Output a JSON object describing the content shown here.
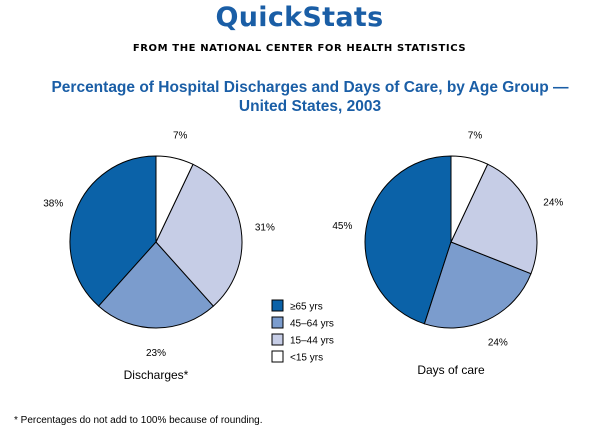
{
  "header": {
    "brand": "QuickStats",
    "subhead": "FROM THE NATIONAL CENTER FOR HEALTH STATISTICS",
    "title_line1": "Percentage of Hospital Discharges and Days of Care, by Age Group —",
    "title_line2": "United States, 2003"
  },
  "legend": {
    "items": [
      {
        "label": "≥65 yrs",
        "color": "#0b62a8"
      },
      {
        "label": "45–64 yrs",
        "color": "#7b9ccd"
      },
      {
        "label": "15–44 yrs",
        "color": "#c6cde6"
      },
      {
        "label": "<15 yrs",
        "color": "#ffffff"
      }
    ]
  },
  "footnote": "* Percentages do not add to 100% because of rounding.",
  "chart_data": [
    {
      "type": "pie",
      "title": "Discharges*",
      "categories": [
        "≥65 yrs",
        "45–64 yrs",
        "15–44 yrs",
        "<15 yrs"
      ],
      "values": [
        38,
        23,
        31,
        7
      ],
      "labels": [
        "38%",
        "23%",
        "31%",
        "7%"
      ],
      "colors": [
        "#0b62a8",
        "#7b9ccd",
        "#c6cde6",
        "#ffffff"
      ]
    },
    {
      "type": "pie",
      "title": "Days of care",
      "categories": [
        "≥65 yrs",
        "45–64 yrs",
        "15–44 yrs",
        "<15 yrs"
      ],
      "values": [
        45,
        24,
        24,
        7
      ],
      "labels": [
        "45%",
        "24%",
        "24%",
        "7%"
      ],
      "colors": [
        "#0b62a8",
        "#7b9ccd",
        "#c6cde6",
        "#ffffff"
      ]
    }
  ]
}
